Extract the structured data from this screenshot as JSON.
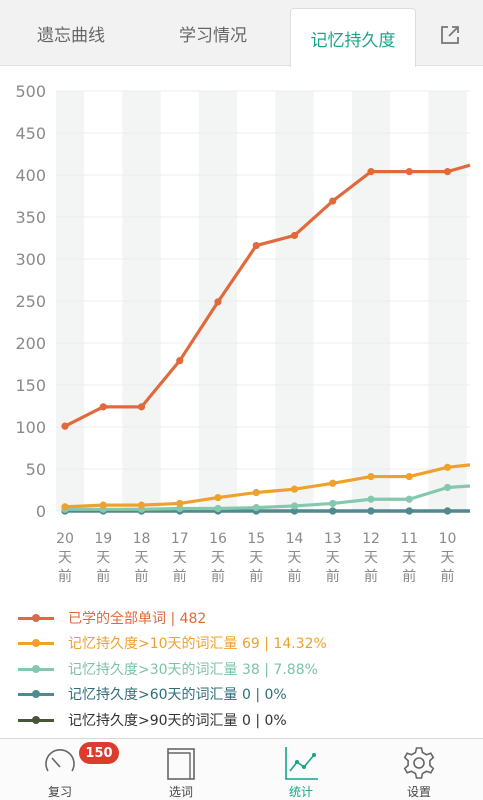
{
  "tabs": [
    {
      "label": "遗忘曲线",
      "active": false
    },
    {
      "label": "学习情况",
      "active": false
    },
    {
      "label": "记忆持久度",
      "active": true
    }
  ],
  "share_icon": "share-icon",
  "chart_data": {
    "type": "line",
    "categories": [
      "20\n天\n前",
      "19\n天\n前",
      "18\n天\n前",
      "17\n天\n前",
      "16\n天\n前",
      "15\n天\n前",
      "14\n天\n前",
      "13\n天\n前",
      "12\n天\n前",
      "11\n天\n前",
      "10\n天\n前",
      ""
    ],
    "ylim": [
      0,
      500
    ],
    "yticks": [
      0,
      50,
      100,
      150,
      200,
      250,
      300,
      350,
      400,
      450,
      500
    ],
    "grid": true,
    "series": [
      {
        "name": "已学的全部单词 | 482",
        "color": "#e06a3b",
        "values": [
          101,
          124,
          124,
          179,
          249,
          316,
          328,
          369,
          404,
          404,
          404,
          417
        ]
      },
      {
        "name": "记忆持久度>10天的词汇量 69 | 14.32%",
        "color": "#eea12d",
        "values": [
          5,
          7,
          7,
          9,
          16,
          22,
          26,
          33,
          41,
          41,
          52,
          57
        ]
      },
      {
        "name": "记忆持久度>30天的词汇量 38 | 7.88%",
        "color": "#84c9ad",
        "values": [
          2,
          2,
          2,
          3,
          3,
          4,
          6,
          9,
          14,
          14,
          28,
          31
        ]
      },
      {
        "name": "记忆持久度>60天的词汇量 0 | 0%",
        "color": "#4d8a92",
        "values": [
          0,
          0,
          0,
          0,
          0,
          0,
          0,
          0,
          0,
          0,
          0,
          0
        ]
      },
      {
        "name": "记忆持久度>90天的词汇量 0 | 0%",
        "color": "#475538",
        "values": [
          0,
          0,
          0,
          0,
          0,
          0,
          0,
          0,
          0,
          0,
          0,
          0
        ]
      }
    ]
  },
  "nav": [
    {
      "label": "复习",
      "icon": "review-gauge-icon",
      "badge": "150",
      "active": false
    },
    {
      "label": "选词",
      "icon": "book-icon",
      "active": false
    },
    {
      "label": "统计",
      "icon": "chart-icon",
      "active": true
    },
    {
      "label": "设置",
      "icon": "gear-icon",
      "active": false
    }
  ],
  "colors": {
    "accent": "#16a58a",
    "badge": "#dc3c2e"
  }
}
